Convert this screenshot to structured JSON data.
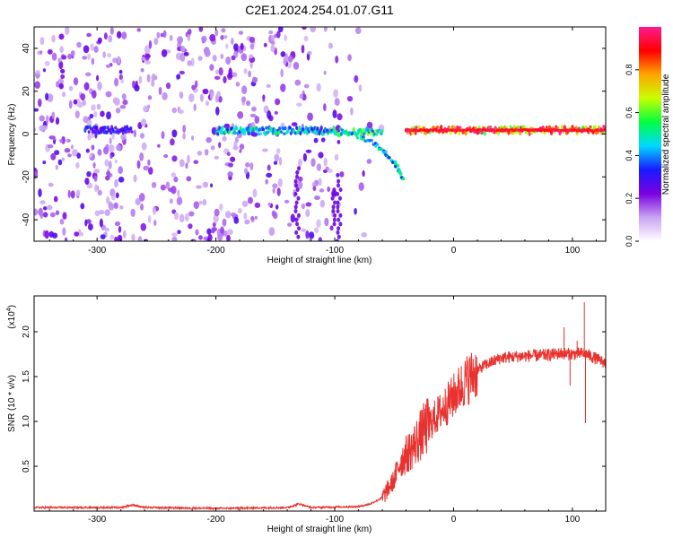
{
  "title": "C2E1.2024.254.01.07.G11",
  "chart_data": [
    {
      "type": "heatmap",
      "title": "C2E1.2024.254.01.07.G11",
      "xlabel": "Height of straight line (km)",
      "ylabel": "Frequency (Hz)",
      "xlim": [
        -353,
        128
      ],
      "ylim": [
        -50,
        50
      ],
      "xticks": [
        -300,
        -200,
        -100,
        0,
        100
      ],
      "xtick_labels": [
        "-300",
        "-200",
        "-100",
        "0",
        "100"
      ],
      "yticks": [
        -40,
        -20,
        0,
        20,
        40
      ],
      "ytick_labels": [
        "-40",
        "-20",
        "0",
        "20",
        "40"
      ],
      "colorbar": {
        "label": "Normalized spectral amplitude",
        "range": [
          0,
          1
        ],
        "ticks": [
          0.0,
          0.2,
          0.4,
          0.6,
          0.8
        ],
        "tick_labels": [
          "0.0",
          "0.2",
          "0.4",
          "0.6",
          "0.8"
        ],
        "colors": [
          "#ffffff",
          "#c9a4f2",
          "#7a00e0",
          "#1a1aff",
          "#00d8ff",
          "#00ff40",
          "#c8ff00",
          "#ffa500",
          "#ff0000",
          "#ff1a8c"
        ]
      },
      "ridge": {
        "main_frequency_hz": 1.5,
        "segments": [
          {
            "x_start": -310,
            "x_end": -270,
            "freq": 2,
            "amplitude": 0.35
          },
          {
            "x_start": -200,
            "x_end": -100,
            "freq": 1.5,
            "amplitude": 0.5
          },
          {
            "x_start": -100,
            "x_end": -60,
            "freq": 1,
            "amplitude": 0.6
          },
          {
            "x_start": -40,
            "x_end": 128,
            "freq": 1.8,
            "amplitude": 0.95
          }
        ],
        "branch_points": [
          [
            -80,
            -1
          ],
          [
            -65,
            -5
          ],
          [
            -55,
            -10
          ],
          [
            -48,
            -15
          ],
          [
            -42,
            -22
          ]
        ]
      },
      "grid": false
    },
    {
      "type": "line",
      "xlabel": "Height of straight line (km)",
      "ylabel": "SNR (10 * v/v)",
      "scale_label_base": "(x10",
      "scale_label_exp": "4",
      "scale_label_end": ")",
      "xlim": [
        -353,
        128
      ],
      "ylim": [
        0,
        2.4
      ],
      "xticks": [
        -300,
        -200,
        -100,
        0,
        100
      ],
      "xtick_labels": [
        "-300",
        "-200",
        "-100",
        "0",
        "100"
      ],
      "yticks": [
        0.5,
        1.0,
        1.5,
        2.0
      ],
      "ytick_labels": [
        "0.5",
        "1.0",
        "1.5",
        "2.0"
      ],
      "line_color": "#e8322f",
      "trend": {
        "x": [
          -353,
          -280,
          -270,
          -260,
          -200,
          -140,
          -130,
          -120,
          -80,
          -70,
          -60,
          -50,
          -45,
          -35,
          -25,
          -15,
          -5,
          10,
          25,
          40,
          60,
          80,
          90,
          100,
          110,
          120,
          128
        ],
        "y": [
          0.04,
          0.04,
          0.07,
          0.04,
          0.03,
          0.04,
          0.08,
          0.04,
          0.05,
          0.08,
          0.15,
          0.35,
          0.55,
          0.7,
          0.9,
          1.05,
          1.2,
          1.45,
          1.62,
          1.71,
          1.73,
          1.74,
          1.76,
          1.75,
          1.76,
          1.7,
          1.65
        ]
      },
      "spikes": [
        [
          93,
          2.05
        ],
        [
          98,
          1.4
        ],
        [
          110,
          2.33
        ],
        [
          111,
          0.98
        ],
        [
          104,
          1.9
        ]
      ],
      "grid": false
    }
  ]
}
